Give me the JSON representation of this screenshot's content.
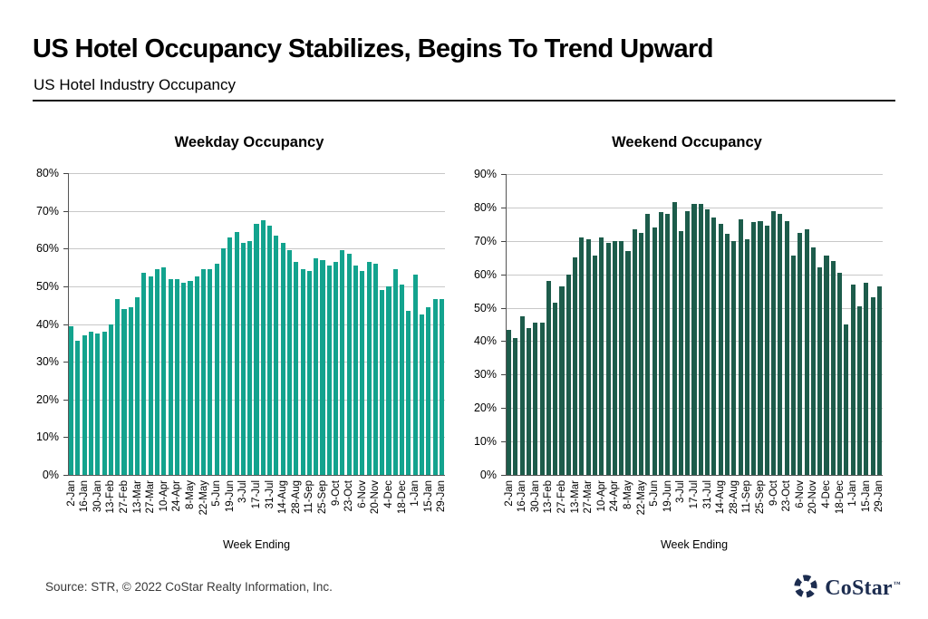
{
  "header": {
    "title": "US Hotel Occupancy Stabilizes, Begins To Trend Upward",
    "subtitle": "US Hotel Industry Occupancy"
  },
  "footer": {
    "source": "Source: STR, © 2022  CoStar Realty Information, Inc.",
    "logo_text": "CoStar",
    "logo_tm": "™"
  },
  "colors": {
    "weekday_bar": "#13a38e",
    "weekend_bar": "#1d5c4b",
    "gridline": "#c8c8c8",
    "logo_navy": "#1d2d50"
  },
  "chart_data": [
    {
      "type": "bar",
      "title": "Weekday Occupancy",
      "xlabel": "Week Ending",
      "ylim": [
        0,
        80
      ],
      "ytick_step": 10,
      "ytick_labels": [
        "0%",
        "10%",
        "20%",
        "30%",
        "40%",
        "50%",
        "60%",
        "70%",
        "80%"
      ],
      "grid": true,
      "bar_color": "#13a38e",
      "label_every": 2,
      "x_tick_labels": [
        "2-Jan",
        "16-Jan",
        "30-Jan",
        "13-Feb",
        "27-Feb",
        "13-Mar",
        "27-Mar",
        "10-Apr",
        "24-Apr",
        "8-May",
        "22-May",
        "5-Jun",
        "19-Jun",
        "3-Jul",
        "17-Jul",
        "31-Jul",
        "14-Aug",
        "28-Aug",
        "11-Sep",
        "25-Sep",
        "9-Oct",
        "23-Oct",
        "6-Nov",
        "20-Nov",
        "4-Dec",
        "18-Dec",
        "1-Jan",
        "15-Jan",
        "29-Jan"
      ],
      "values": [
        39.5,
        35.5,
        37,
        38,
        37.5,
        38,
        40,
        46.5,
        44,
        44.5,
        47,
        53.5,
        52.5,
        54.5,
        55,
        52,
        52,
        51,
        51.5,
        52.5,
        54.5,
        54.5,
        56,
        60,
        63,
        64.5,
        61.5,
        62,
        66.5,
        67.5,
        66,
        63.5,
        61.5,
        59.5,
        56.5,
        54.5,
        54,
        57.5,
        57,
        55.5,
        56.5,
        59.5,
        58.5,
        55.5,
        54,
        56.5,
        56,
        49,
        50,
        54.5,
        50.5,
        43.5,
        53,
        42.5,
        44.5,
        46.5,
        46.5
      ]
    },
    {
      "type": "bar",
      "title": "Weekend Occupancy",
      "xlabel": "Week Ending",
      "ylim": [
        0,
        90
      ],
      "ytick_step": 10,
      "ytick_labels": [
        "0%",
        "10%",
        "20%",
        "30%",
        "40%",
        "50%",
        "60%",
        "70%",
        "80%",
        "90%"
      ],
      "grid": true,
      "bar_color": "#1d5c4b",
      "label_every": 2,
      "x_tick_labels": [
        "2-Jan",
        "16-Jan",
        "30-Jan",
        "13-Feb",
        "27-Feb",
        "13-Mar",
        "27-Mar",
        "10-Apr",
        "24-Apr",
        "8-May",
        "22-May",
        "5-Jun",
        "19-Jun",
        "3-Jul",
        "17-Jul",
        "31-Jul",
        "14-Aug",
        "28-Aug",
        "11-Sep",
        "25-Sep",
        "9-Oct",
        "23-Oct",
        "6-Nov",
        "20-Nov",
        "4-Dec",
        "18-Dec",
        "1-Jan",
        "15-Jan",
        "29-Jan"
      ],
      "values": [
        43.5,
        41,
        47.5,
        44,
        45.5,
        45.5,
        58,
        51.5,
        56.5,
        60,
        65,
        71,
        70.5,
        65.5,
        71,
        69.5,
        70,
        70,
        67,
        73.5,
        72.5,
        78,
        74,
        78.5,
        78,
        81.5,
        73,
        79,
        81,
        81,
        79.5,
        77,
        75,
        72,
        70,
        76.5,
        70.5,
        75.5,
        76,
        74.5,
        79,
        78,
        76,
        65.5,
        72.5,
        73.5,
        68,
        62,
        65.5,
        64,
        60.5,
        45,
        57,
        50.5,
        57.5,
        53,
        56.5
      ]
    }
  ]
}
